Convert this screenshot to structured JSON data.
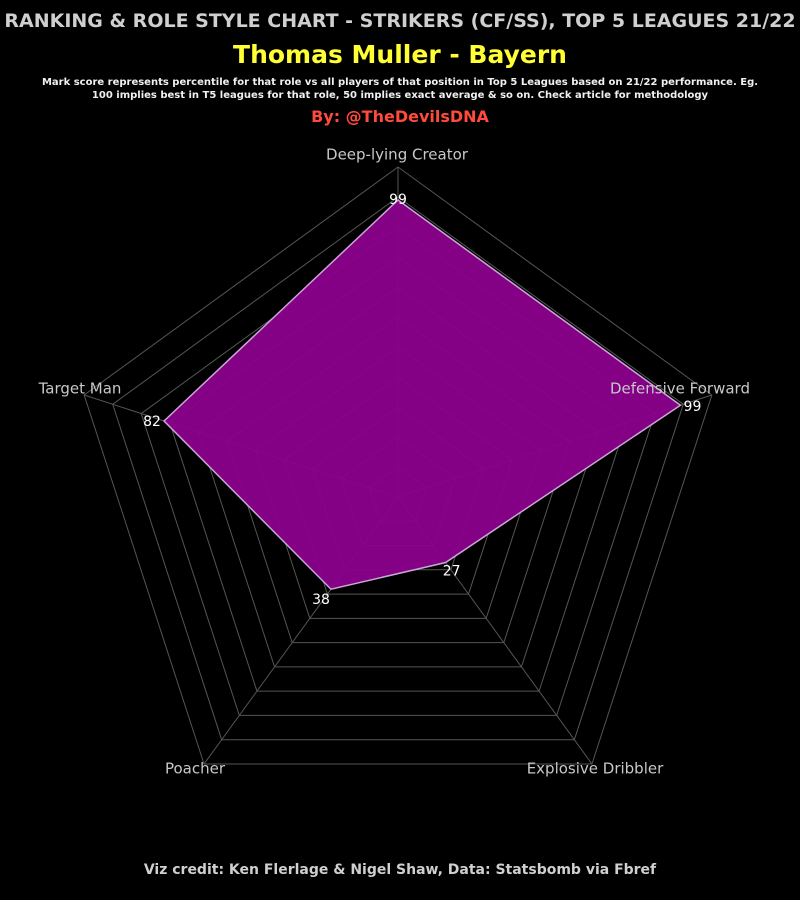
{
  "chart_data": {
    "type": "radar",
    "title": "RANKING & ROLE STYLE CHART - STRIKERS (CF/SS), TOP 5 LEAGUES 21/22",
    "subtitle": "Thomas Muller - Bayern",
    "description": "Mark score represents percentile for that role vs all players of that position in Top 5 Leagues based on 21/22 performance. Eg. 100 implies best in T5 leagues for that role, 50 implies exact average & so on. Check article for methodology",
    "byline": "By: @TheDevilsDNA",
    "credit": "Viz credit: Ken Flerlage & Nigel Shaw, Data: Statsbomb via Fbref",
    "categories": [
      "Deep-lying Creator",
      "Defensive Forward",
      "Explosive Dribbler",
      "Poacher",
      "Target Man"
    ],
    "values": [
      99,
      99,
      27,
      38,
      82
    ],
    "color": "#8b008b",
    "ylim": [
      0,
      110
    ],
    "yticks": [
      10,
      20,
      30,
      40,
      50,
      60,
      70,
      80,
      90,
      100,
      110
    ],
    "grid": true
  }
}
